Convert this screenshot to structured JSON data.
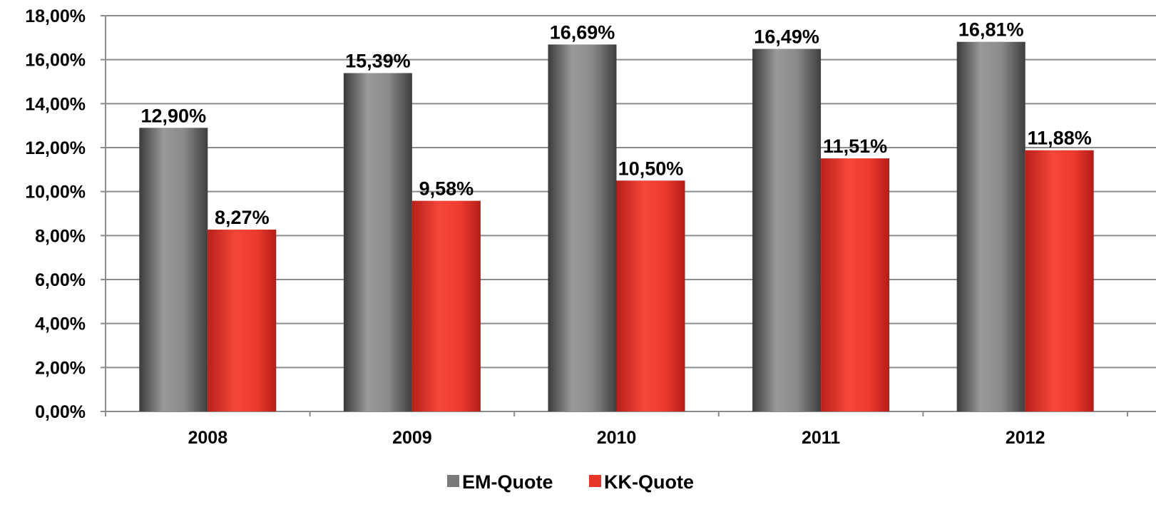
{
  "chart_data": {
    "type": "bar",
    "title": "",
    "xlabel": "",
    "ylabel": "",
    "categories": [
      "2008",
      "2009",
      "2010",
      "2011",
      "2012"
    ],
    "series": [
      {
        "name": "EM-Quote",
        "color": "#7a7a7a",
        "values": [
          12.9,
          15.39,
          16.69,
          16.49,
          16.81
        ],
        "labels": [
          "12,90%",
          "15,39%",
          "16,69%",
          "16,49%",
          "16,81%"
        ]
      },
      {
        "name": "KK-Quote",
        "color": "#e8352a",
        "values": [
          8.27,
          9.58,
          10.5,
          11.51,
          11.88
        ],
        "labels": [
          "8,27%",
          "9,58%",
          "10,50%",
          "11,51%",
          "11,88%"
        ]
      }
    ],
    "ylim": [
      0,
      18
    ],
    "y_ticks": [
      "0,00%",
      "2,00%",
      "4,00%",
      "6,00%",
      "8,00%",
      "10,00%",
      "12,00%",
      "14,00%",
      "16,00%",
      "18,00%"
    ],
    "grid": true,
    "legend_position": "bottom"
  }
}
